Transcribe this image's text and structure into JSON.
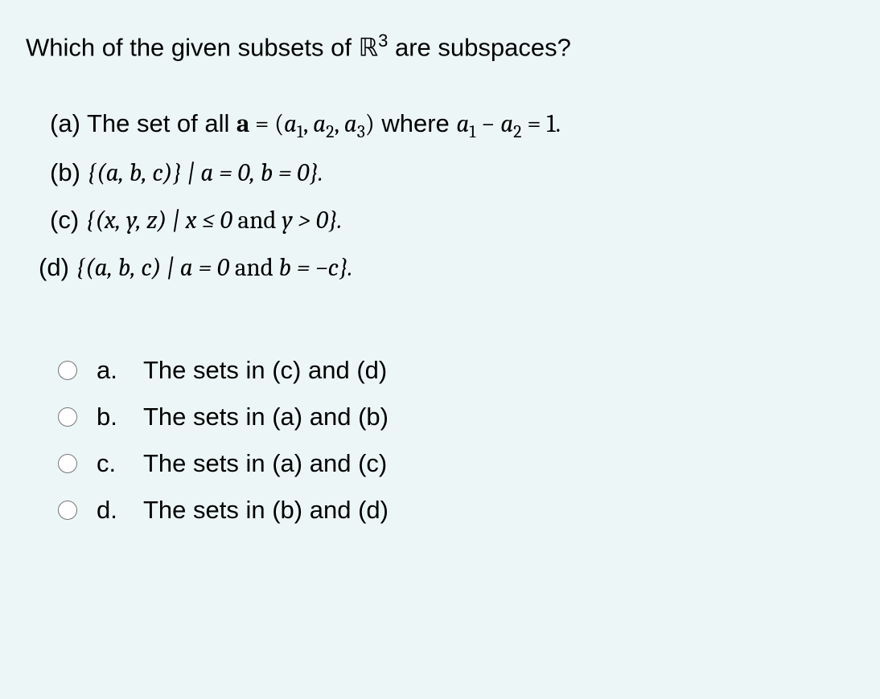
{
  "question": {
    "title_prefix": "Which of the given subsets of ",
    "title_r": "ℝ",
    "title_exp": "3",
    "title_suffix": " are subspaces?"
  },
  "items": {
    "a": {
      "label": "(a) The set of all ",
      "eq_lhs": "a",
      "eq_eq": " = ",
      "eq_rhs_open": "(",
      "a1": "a",
      "a1_sub": "1",
      "comma1": ", ",
      "a2": "a",
      "a2_sub": "2",
      "comma2": ", ",
      "a3": "a",
      "a3_sub": "3",
      "close": ")",
      "where": " where ",
      "c_a1": "a",
      "c_a1_sub": "1",
      "minus": " − ",
      "c_a2": "a",
      "c_a2_sub": "2",
      "tail": " = 1."
    },
    "b": {
      "label": "(b) ",
      "set": "{(a, b, c)} | a = 0, b = 0}."
    },
    "c": {
      "label": "(c) ",
      "set_open": "{(x, y, z) | x ≤ 0 ",
      "and": "and",
      "set_close": " y > 0}."
    },
    "d": {
      "label": "(d) ",
      "set_open": "{(a, b, c) | a = 0 ",
      "and": "and",
      "set_close": " b = −c}."
    }
  },
  "options": {
    "a": {
      "letter": "a.",
      "text": "The sets in (c) and (d)"
    },
    "b": {
      "letter": "b.",
      "text": "The sets in (a) and (b)"
    },
    "c": {
      "letter": "c.",
      "text": "The sets in (a) and (c)"
    },
    "d": {
      "letter": "d.",
      "text": "The sets in (b) and (d)"
    }
  },
  "colors": {
    "background": "#edf6f6",
    "text": "#000000"
  }
}
